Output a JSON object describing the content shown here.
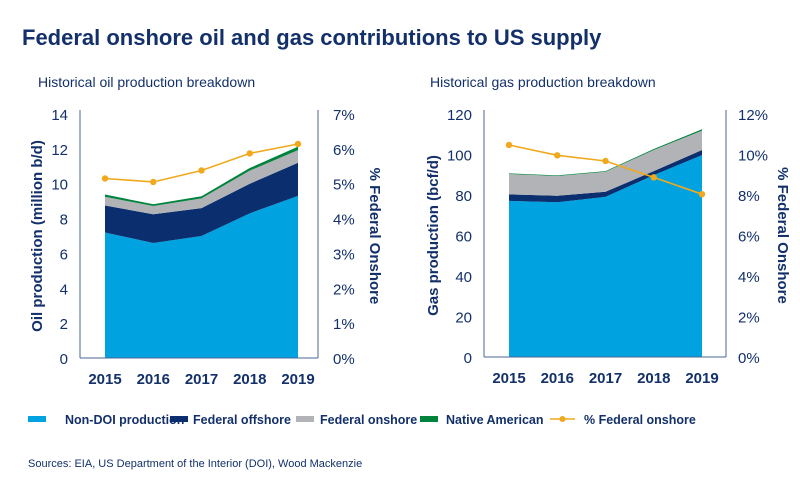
{
  "title": "Federal onshore oil and gas contributions to US supply",
  "source": "Sources: EIA, US Department of the Interior (DOI), Wood Mackenzie",
  "colors": {
    "non_doi": "#00a3e0",
    "federal_offshore": "#0b2f6e",
    "federal_onshore": "#b1b3b6",
    "native_american": "#00843d",
    "pct_federal_onshore": "#f0a91c",
    "text": "#13306b"
  },
  "legend": [
    "Non-DOI production",
    "Federal offshore",
    "Federal onshore",
    "Native American",
    "% Federal onshore"
  ],
  "chart_data": [
    {
      "type": "area",
      "subtitle": "Historical oil production breakdown",
      "categories": [
        "2015",
        "2016",
        "2017",
        "2018",
        "2019"
      ],
      "ylabel": "Oil production (million b/d)",
      "y2label": "% Federal Onshore",
      "ylim": [
        0,
        14
      ],
      "yticks": [
        "0",
        "2",
        "4",
        "6",
        "8",
        "10",
        "12",
        "14"
      ],
      "y2lim": [
        0,
        7
      ],
      "y2ticks": [
        "0%",
        "1%",
        "2%",
        "3%",
        "4%",
        "5%",
        "6%",
        "7%"
      ],
      "stacked": true,
      "series": [
        {
          "name": "Non-DOI production",
          "values": [
            7.2,
            6.6,
            7.0,
            8.3,
            9.3
          ]
        },
        {
          "name": "Federal offshore",
          "values": [
            1.55,
            1.65,
            1.6,
            1.7,
            1.9
          ]
        },
        {
          "name": "Federal onshore",
          "values": [
            0.5,
            0.47,
            0.56,
            0.75,
            0.73
          ]
        },
        {
          "name": "Native American",
          "values": [
            0.13,
            0.1,
            0.12,
            0.15,
            0.2
          ]
        }
      ],
      "line_series": {
        "name": "% Federal onshore",
        "axis": "right",
        "values": [
          5.15,
          5.05,
          5.38,
          5.87,
          6.14
        ]
      },
      "grid": false
    },
    {
      "type": "area",
      "subtitle": "Historical gas production breakdown",
      "categories": [
        "2015",
        "2016",
        "2017",
        "2018",
        "2019"
      ],
      "ylabel": "Gas production (bcf/d)",
      "y2label": "% Federal Onshore",
      "ylim": [
        0,
        120
      ],
      "yticks": [
        "0",
        "20",
        "40",
        "60",
        "80",
        "100",
        "120"
      ],
      "y2lim": [
        0,
        12
      ],
      "y2ticks": [
        "0%",
        "2%",
        "4%",
        "6%",
        "8%",
        "10%",
        "12%"
      ],
      "stacked": true,
      "series": [
        {
          "name": "Non-DOI production",
          "values": [
            77.1,
            76.4,
            79.1,
            89.8,
            99.7
          ]
        },
        {
          "name": "Federal offshore",
          "values": [
            3.2,
            3.2,
            2.5,
            2.0,
            2.5
          ]
        },
        {
          "name": "Federal onshore",
          "values": [
            10.1,
            9.8,
            9.9,
            10.4,
            9.6
          ]
        },
        {
          "name": "Native American",
          "values": [
            0.3,
            0.3,
            0.3,
            0.5,
            0.7
          ]
        }
      ],
      "line_series": {
        "name": "% Federal onshore",
        "axis": "right",
        "values": [
          10.47,
          9.96,
          9.68,
          8.87,
          8.04
        ]
      },
      "grid": false
    }
  ]
}
